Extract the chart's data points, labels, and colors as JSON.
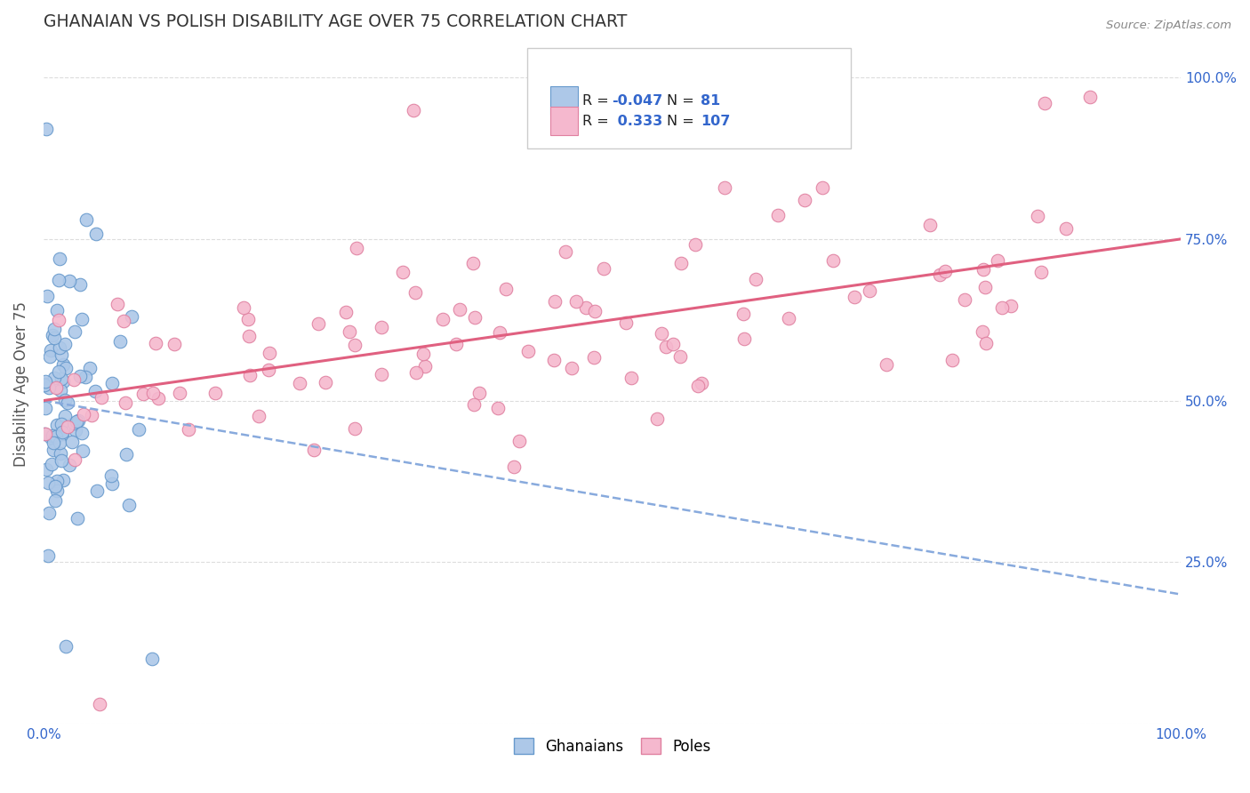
{
  "title": "GHANAIAN VS POLISH DISABILITY AGE OVER 75 CORRELATION CHART",
  "source": "Source: ZipAtlas.com",
  "ylabel": "Disability Age Over 75",
  "xlim": [
    0,
    1
  ],
  "ylim": [
    0,
    1.05
  ],
  "yticks_right": [
    0.25,
    0.5,
    0.75,
    1.0
  ],
  "ytick_labels_right": [
    "25.0%",
    "50.0%",
    "75.0%",
    "100.0%"
  ],
  "ghanaian_color": "#adc8e8",
  "pole_color": "#f5b8ce",
  "ghanaian_edge": "#6699cc",
  "pole_edge": "#e080a0",
  "trend_ghanaian_color": "#88aadd",
  "trend_pole_color": "#e06080",
  "R_ghanaian": -0.047,
  "N_ghanaian": 81,
  "R_pole": 0.333,
  "N_pole": 107,
  "legend_label_ghanaian": "Ghanaians",
  "legend_label_pole": "Poles",
  "title_color": "#333333",
  "axis_label_color": "#555555",
  "tick_color": "#3366cc",
  "grid_color": "#dddddd",
  "background_color": "#ffffff",
  "legend_text_color": "#222222",
  "legend_value_color": "#3366cc",
  "source_color": "#888888"
}
